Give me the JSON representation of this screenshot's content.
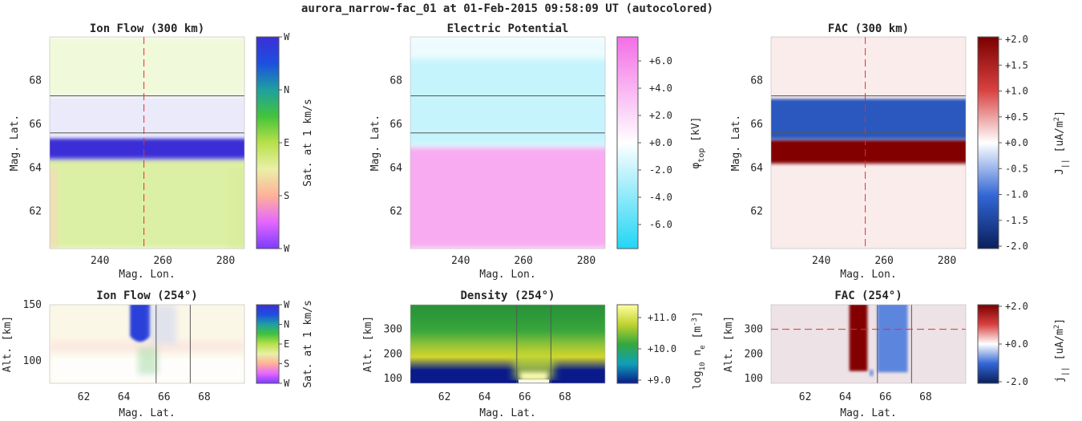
{
  "figure_title": "aurora_narrow-fac_01 at 01-Feb-2015 09:58:09 UT (autocolored)",
  "colors": {
    "ion_flow_cyclic": [
      "#7a3cff",
      "#e566ff",
      "#ffb199",
      "#eaf0a8",
      "#b8e04a",
      "#43c33a",
      "#1ea0a0",
      "#1d4fe0",
      "#3b2fd6"
    ],
    "potential": [
      "#22d5f5",
      "#ffffff",
      "#f36ee6"
    ],
    "fac": [
      "#0a1f5c",
      "#3266d6",
      "#ffffff",
      "#d84040",
      "#7a0000"
    ],
    "density": [
      "#0a1a8a",
      "#10a0b8",
      "#35a83c",
      "#c0d230",
      "#ffffa0"
    ],
    "boundary_line": "#555555",
    "marker_line": "#e03030"
  },
  "chart_data": [
    {
      "id": "ion-flow-300",
      "type": "heatmap",
      "title": "Ion Flow (300 km)",
      "xlabel": "Mag. Lon.",
      "ylabel": "Mag. Lat.",
      "xlim": [
        224,
        286
      ],
      "ylim": [
        60.3,
        70.0
      ],
      "xticks": [
        240,
        260,
        280
      ],
      "yticks": [
        62,
        64,
        66,
        68
      ],
      "boundaries_lat": [
        65.6,
        67.3
      ],
      "marker_lon": 254,
      "colorbar": {
        "label": "Sat. at 1 km/s",
        "ticks": [
          "W",
          "N",
          "E",
          "S",
          "W"
        ]
      },
      "bands": [
        {
          "from": 60.3,
          "to": 64.4,
          "direction": "E",
          "saturation": 0.5
        },
        {
          "from": 64.4,
          "to": 65.4,
          "direction": "W",
          "saturation": 1.0
        },
        {
          "from": 65.4,
          "to": 67.3,
          "direction": "W",
          "saturation": 0.1
        },
        {
          "from": 67.3,
          "to": 70.0,
          "direction": "E",
          "saturation": 0.2
        }
      ]
    },
    {
      "id": "potential",
      "type": "heatmap",
      "title": "Electric Potential",
      "xlabel": "Mag. Lon.",
      "ylabel": "Mag. Lat.",
      "xlim": [
        224,
        286
      ],
      "ylim": [
        60.3,
        70.0
      ],
      "xticks": [
        240,
        260,
        280
      ],
      "yticks": [
        62,
        64,
        66,
        68
      ],
      "boundaries_lat": [
        65.6,
        67.3
      ],
      "colorbar": {
        "label": "φtop [kV]",
        "label_main": "φ",
        "label_sub": "top",
        "label_unit": "[kV]",
        "ticks": [
          "+6.0",
          "+4.0",
          "+2.0",
          "+0.0",
          "-2.0",
          "-4.0",
          "-6.0"
        ],
        "range": [
          -7.8,
          7.8
        ]
      },
      "bands": [
        {
          "from": 60.3,
          "to": 65.0,
          "value": 4.5
        },
        {
          "from": 65.0,
          "to": 70.0,
          "value": -2.0
        }
      ]
    },
    {
      "id": "fac-300",
      "type": "heatmap",
      "title": "FAC (300 km)",
      "xlabel": "Mag. Lon.",
      "ylabel": "Mag. Lat.",
      "xlim": [
        224,
        286
      ],
      "ylim": [
        60.3,
        70.0
      ],
      "xticks": [
        240,
        260,
        280
      ],
      "yticks": [
        62,
        64,
        66,
        68
      ],
      "boundaries_lat": [
        65.6,
        67.3
      ],
      "marker_lon": 254,
      "colorbar": {
        "label": "J|| [uA/m2]",
        "ticks": [
          "+2.0",
          "+1.5",
          "+1.0",
          "+0.5",
          "+0.0",
          "-0.5",
          "-1.0",
          "-1.5",
          "-2.0"
        ],
        "range": [
          -2.0,
          2.0
        ]
      },
      "bands": [
        {
          "from": 60.3,
          "to": 64.2,
          "value": 0.1
        },
        {
          "from": 64.2,
          "to": 65.3,
          "value": 1.9
        },
        {
          "from": 65.3,
          "to": 67.2,
          "value": -1.2
        },
        {
          "from": 67.2,
          "to": 70.0,
          "value": 0.1
        }
      ]
    },
    {
      "id": "ion-flow-254",
      "type": "heatmap",
      "title": "Ion Flow (254°)",
      "xlabel": "",
      "ylabel": "Alt. [km]",
      "xlim": [
        60.3,
        70.0
      ],
      "ylim": [
        80,
        150
      ],
      "xticks": [
        62,
        64,
        66,
        68
      ],
      "yticks": [
        100,
        150
      ],
      "boundaries_lat": [
        65.6,
        67.3
      ],
      "colorbar": {
        "label": "Sat. at 1 km/s",
        "ticks": [
          "W",
          "N",
          "E",
          "S",
          "W"
        ]
      }
    },
    {
      "id": "density-254",
      "type": "heatmap",
      "title": "Density (254°)",
      "xlabel": "Mag. Lat.",
      "ylabel": "Alt. [km]",
      "xlim": [
        60.3,
        70.0
      ],
      "ylim": [
        80,
        400
      ],
      "xticks": [
        62,
        64,
        66,
        68
      ],
      "yticks": [
        100,
        200,
        300
      ],
      "boundaries_lat": [
        65.6,
        67.3
      ],
      "colorbar": {
        "label": "log10 ne [m-3]",
        "label_pre": "log",
        "label_sub": "10",
        "label_mid": " n",
        "label_sub2": "e",
        "label_unit": " [m",
        "label_sup": "-3",
        "label_end": "]",
        "ticks": [
          "+11.0",
          "+10.0",
          "+9.0"
        ],
        "range": [
          8.9,
          11.2
        ]
      }
    },
    {
      "id": "fac-254",
      "type": "heatmap",
      "title": "FAC (254°)",
      "xlabel": "Mag. Lat.",
      "ylabel": "Alt. [km]",
      "xlim": [
        60.3,
        70.0
      ],
      "ylim": [
        80,
        400
      ],
      "xticks": [
        62,
        64,
        66,
        68
      ],
      "yticks": [
        100,
        200,
        300
      ],
      "boundaries_lat": [
        65.6,
        67.3
      ],
      "marker_alt": 300,
      "colorbar": {
        "label": "j|| [uA/m2]",
        "ticks": [
          "+2.0",
          "+0.0",
          "-2.0"
        ],
        "range": [
          -2.0,
          2.0
        ]
      },
      "bands": [
        {
          "from": 64.2,
          "to": 65.1,
          "alt_from": 130,
          "alt_to": 400,
          "value": 1.9
        },
        {
          "from": 65.6,
          "to": 67.1,
          "alt_from": 125,
          "alt_to": 400,
          "value": -0.8
        }
      ]
    }
  ]
}
